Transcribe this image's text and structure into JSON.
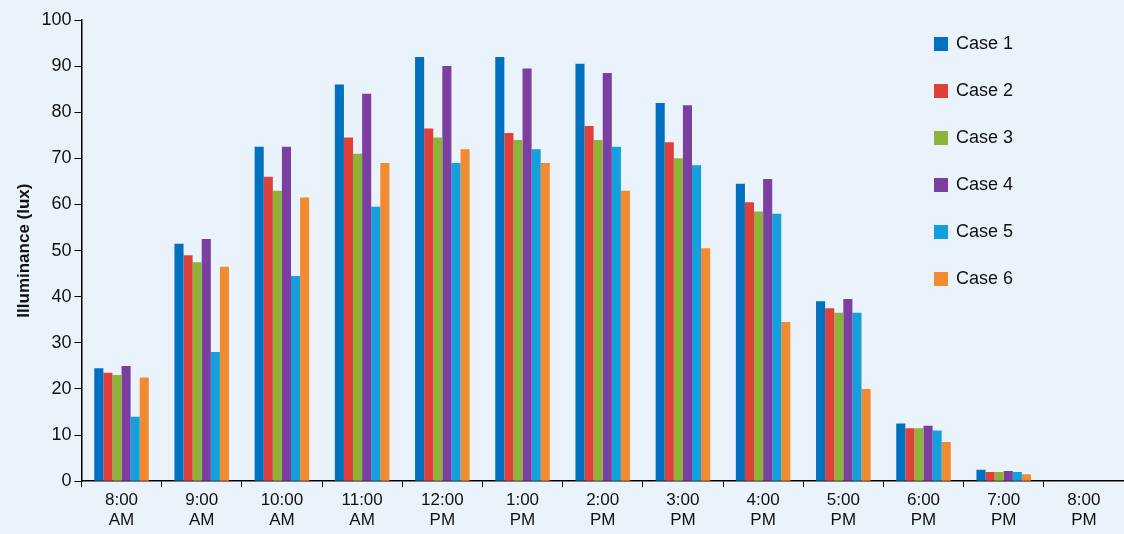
{
  "chart_data": {
    "type": "bar",
    "ylabel": "Illuminance (lux)",
    "categories": [
      "8:00 AM",
      "9:00 AM",
      "10:00 AM",
      "11:00 AM",
      "12:00 PM",
      "1:00 PM",
      "2:00 PM",
      "3:00 PM",
      "4:00 PM",
      "5:00 PM",
      "6:00 PM",
      "7:00 PM",
      "8:00 PM"
    ],
    "series": [
      {
        "name": "Case 1",
        "color": "#0070c0",
        "values": [
          24.5,
          51.5,
          72.5,
          86,
          92,
          92,
          90.5,
          82,
          64.5,
          39,
          12.5,
          2.5,
          0
        ]
      },
      {
        "name": "Case 2",
        "color": "#e0403a",
        "values": [
          23.5,
          49,
          66,
          74.5,
          76.5,
          75.5,
          77,
          73.5,
          60.5,
          37.5,
          11.5,
          2,
          0
        ]
      },
      {
        "name": "Case 3",
        "color": "#8db33a",
        "values": [
          23,
          47.5,
          63,
          71,
          74.5,
          74,
          74,
          70,
          58.5,
          36.5,
          11.5,
          2,
          0
        ]
      },
      {
        "name": "Case 4",
        "color": "#7a3fa0",
        "values": [
          25,
          52.5,
          72.5,
          84,
          90,
          89.5,
          88.5,
          81.5,
          65.5,
          39.5,
          12,
          2.2,
          0
        ]
      },
      {
        "name": "Case 5",
        "color": "#14a0dc",
        "values": [
          14,
          28,
          44.5,
          59.5,
          69,
          72,
          72.5,
          68.5,
          58,
          36.5,
          11,
          2,
          0
        ]
      },
      {
        "name": "Case 6",
        "color": "#f28a30",
        "values": [
          22.5,
          46.5,
          61.5,
          69,
          72,
          69,
          63,
          50.5,
          34.5,
          20,
          8.5,
          1.5,
          0
        ]
      }
    ],
    "ylim": [
      0,
      100
    ],
    "yticks": [
      0,
      10,
      20,
      30,
      40,
      50,
      60,
      70,
      80,
      90,
      100
    ],
    "grid": false,
    "legend": "top right"
  }
}
